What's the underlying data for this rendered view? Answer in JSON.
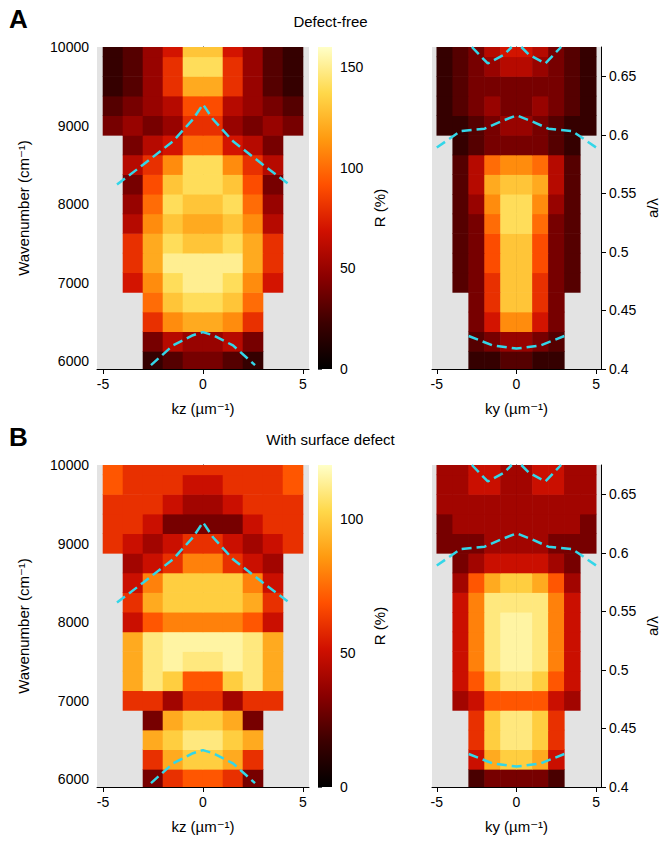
{
  "chart_data": [
    {
      "type": "heatmap",
      "label": "A",
      "title": "Defect-free",
      "xlabel": "kz (µm⁻¹)",
      "ylabel": "Wavenumber (cm⁻¹)",
      "xlim": [
        -5.3,
        5.3
      ],
      "xticks": [
        -5,
        0,
        5
      ],
      "ylim": [
        5900,
        10000
      ],
      "yticks": [
        6000,
        7000,
        8000,
        9000,
        10000
      ],
      "colorbar": {
        "label": "R (%)",
        "range": [
          0,
          160
        ],
        "ticks": [
          0,
          50,
          100,
          150
        ]
      },
      "x": [
        -4.5,
        -3.5,
        -2.5,
        -1.5,
        -0.5,
        0.5,
        1.5,
        2.5,
        3.5,
        4.5
      ],
      "y": [
        6000,
        6250,
        6500,
        6750,
        7000,
        7250,
        7500,
        7750,
        8000,
        8250,
        8500,
        8750,
        9000,
        9250,
        9500,
        9750,
        10000
      ],
      "cells": [
        [
          null,
          null,
          20,
          30,
          40,
          40,
          30,
          20,
          null,
          null
        ],
        [
          null,
          null,
          40,
          60,
          50,
          50,
          60,
          40,
          null,
          null
        ],
        [
          null,
          null,
          80,
          110,
          120,
          120,
          110,
          80,
          null,
          null
        ],
        [
          null,
          null,
          100,
          130,
          140,
          140,
          130,
          100,
          null,
          null
        ],
        [
          null,
          70,
          110,
          140,
          150,
          150,
          140,
          110,
          70,
          null
        ],
        [
          null,
          80,
          120,
          150,
          150,
          150,
          150,
          120,
          80,
          null
        ],
        [
          null,
          80,
          120,
          140,
          130,
          130,
          140,
          120,
          80,
          null
        ],
        [
          null,
          60,
          110,
          130,
          120,
          120,
          130,
          110,
          60,
          null
        ],
        [
          null,
          50,
          100,
          140,
          130,
          130,
          140,
          100,
          50,
          null
        ],
        [
          null,
          40,
          90,
          130,
          140,
          140,
          130,
          90,
          40,
          null
        ],
        [
          null,
          60,
          80,
          110,
          140,
          140,
          110,
          80,
          60,
          null
        ],
        [
          null,
          40,
          60,
          70,
          100,
          100,
          70,
          60,
          40,
          null
        ],
        [
          40,
          50,
          40,
          50,
          80,
          80,
          50,
          40,
          50,
          40
        ],
        [
          30,
          40,
          50,
          60,
          90,
          90,
          60,
          50,
          40,
          30
        ],
        [
          20,
          30,
          50,
          80,
          120,
          120,
          80,
          50,
          30,
          20
        ],
        [
          20,
          30,
          50,
          80,
          140,
          140,
          80,
          50,
          30,
          20
        ],
        [
          20,
          30,
          50,
          70,
          130,
          130,
          70,
          50,
          30,
          20
        ]
      ],
      "series": [
        {
          "type": "line",
          "color": "#33d6e8",
          "line_style": "dashed",
          "x": [
            -4.3,
            -3,
            -1.5,
            -0.5,
            0,
            0.5,
            1.5,
            3,
            4.3
          ],
          "y": [
            8250,
            8500,
            8800,
            9080,
            9270,
            9080,
            8800,
            8500,
            8250
          ]
        },
        {
          "type": "line",
          "color": "#33d6e8",
          "line_style": "dashed",
          "x": [
            -2.6,
            -1.5,
            -0.5,
            0,
            0.5,
            1.5,
            2.6
          ],
          "y": [
            5950,
            6200,
            6330,
            6370,
            6330,
            6200,
            5950
          ]
        }
      ]
    },
    {
      "type": "heatmap",
      "xlabel": "ky (µm⁻¹)",
      "y2label": "a/λ",
      "xlim": [
        -5.3,
        5.3
      ],
      "xticks": [
        -5,
        0,
        5
      ],
      "ylim": [
        5900,
        10000
      ],
      "y2lim": [
        0.4,
        0.675
      ],
      "y2ticks": [
        0.4,
        0.45,
        0.5,
        0.55,
        0.6,
        0.65
      ],
      "x": [
        -4.5,
        -3.5,
        -2.5,
        -1.5,
        -0.5,
        0.5,
        1.5,
        2.5,
        3.5,
        4.5
      ],
      "y": [
        6000,
        6250,
        6500,
        6750,
        7000,
        7250,
        7500,
        7750,
        8000,
        8250,
        8500,
        8750,
        9000,
        9250,
        9500,
        9750,
        10000
      ],
      "cells": [
        [
          null,
          null,
          20,
          20,
          30,
          30,
          20,
          20,
          null,
          null
        ],
        [
          null,
          null,
          30,
          40,
          50,
          50,
          40,
          30,
          null,
          null
        ],
        [
          null,
          null,
          40,
          70,
          110,
          110,
          70,
          40,
          null,
          null
        ],
        [
          null,
          null,
          40,
          80,
          130,
          130,
          80,
          40,
          null,
          null
        ],
        [
          null,
          30,
          40,
          80,
          130,
          130,
          80,
          40,
          30,
          null
        ],
        [
          null,
          30,
          40,
          90,
          130,
          130,
          90,
          40,
          30,
          null
        ],
        [
          null,
          30,
          40,
          90,
          130,
          130,
          90,
          40,
          30,
          null
        ],
        [
          null,
          30,
          40,
          100,
          140,
          140,
          100,
          40,
          30,
          null
        ],
        [
          null,
          30,
          50,
          110,
          140,
          140,
          110,
          50,
          30,
          null
        ],
        [
          null,
          30,
          60,
          120,
          130,
          130,
          120,
          60,
          30,
          null
        ],
        [
          null,
          30,
          60,
          100,
          110,
          110,
          100,
          60,
          30,
          null
        ],
        [
          null,
          20,
          30,
          40,
          40,
          40,
          40,
          30,
          20,
          null
        ],
        [
          20,
          20,
          30,
          40,
          50,
          50,
          40,
          30,
          20,
          20
        ],
        [
          20,
          30,
          40,
          50,
          40,
          40,
          50,
          40,
          30,
          20
        ],
        [
          20,
          30,
          40,
          40,
          40,
          40,
          40,
          40,
          30,
          20
        ],
        [
          20,
          30,
          40,
          50,
          60,
          60,
          50,
          40,
          30,
          20
        ],
        [
          20,
          30,
          40,
          60,
          70,
          70,
          60,
          40,
          30,
          20
        ]
      ],
      "series": [
        {
          "type": "line",
          "color": "#33d6e8",
          "line_style": "dashed",
          "x": [
            -3,
            -1.5,
            0,
            1.5,
            3
          ],
          "y": [
            6320,
            6200,
            6160,
            6200,
            6320
          ]
        },
        {
          "type": "line",
          "color": "#33d6e8",
          "line_style": "dashed",
          "x": [
            -5,
            -3.5,
            -2,
            -1,
            0,
            1,
            2,
            3.5,
            5
          ],
          "y": [
            8720,
            8930,
            8960,
            9050,
            9130,
            9050,
            8960,
            8930,
            8720
          ]
        },
        {
          "type": "line",
          "color": "#33d6e8",
          "line_style": "dashed",
          "x": [
            -2.8,
            -1.8,
            -0.8,
            -0.3,
            null,
            0.3,
            0.8,
            1.8,
            2.8
          ],
          "y": [
            10000,
            9790,
            9900,
            10000,
            null,
            10000,
            9900,
            9790,
            10000
          ]
        }
      ]
    },
    {
      "type": "heatmap",
      "label": "B",
      "title": "With surface defect",
      "xlabel": "kz (µm⁻¹)",
      "ylabel": "Wavenumber (cm⁻¹)",
      "xlim": [
        -5.3,
        5.3
      ],
      "xticks": [
        -5,
        0,
        5
      ],
      "ylim": [
        5900,
        10000
      ],
      "yticks": [
        6000,
        7000,
        8000,
        9000,
        10000
      ],
      "colorbar": {
        "label": "R (%)",
        "range": [
          0,
          120
        ],
        "ticks": [
          0,
          50,
          100
        ]
      },
      "x": [
        -4.5,
        -3.5,
        -2.5,
        -1.5,
        -0.5,
        0.5,
        1.5,
        2.5,
        3.5,
        4.5
      ],
      "y": [
        6000,
        6250,
        6500,
        6750,
        7000,
        7250,
        7500,
        7750,
        8000,
        8250,
        8500,
        8750,
        9000,
        9250,
        9500,
        9750,
        10000
      ],
      "cells": [
        [
          null,
          null,
          30,
          60,
          70,
          70,
          60,
          30,
          null,
          null
        ],
        [
          null,
          null,
          60,
          90,
          100,
          100,
          90,
          60,
          null,
          null
        ],
        [
          null,
          null,
          90,
          100,
          110,
          110,
          100,
          90,
          null,
          null
        ],
        [
          null,
          null,
          30,
          90,
          100,
          100,
          90,
          30,
          null,
          null
        ],
        [
          null,
          60,
          60,
          40,
          60,
          60,
          40,
          60,
          60,
          null
        ],
        [
          null,
          90,
          110,
          100,
          70,
          70,
          100,
          110,
          90,
          null
        ],
        [
          null,
          90,
          110,
          115,
          110,
          110,
          115,
          110,
          90,
          null
        ],
        [
          null,
          90,
          110,
          115,
          115,
          115,
          115,
          110,
          90,
          null
        ],
        [
          null,
          50,
          70,
          80,
          80,
          80,
          80,
          70,
          50,
          null
        ],
        [
          null,
          60,
          90,
          100,
          100,
          100,
          100,
          90,
          60,
          null
        ],
        [
          null,
          50,
          80,
          100,
          100,
          100,
          100,
          80,
          50,
          null
        ],
        [
          null,
          40,
          50,
          60,
          80,
          80,
          60,
          50,
          40,
          null
        ],
        [
          60,
          50,
          40,
          50,
          60,
          60,
          50,
          40,
          50,
          60
        ],
        [
          60,
          60,
          50,
          30,
          30,
          30,
          30,
          50,
          60,
          60
        ],
        [
          60,
          60,
          60,
          50,
          40,
          40,
          50,
          60,
          60,
          60
        ],
        [
          70,
          60,
          60,
          60,
          50,
          50,
          60,
          60,
          60,
          70
        ],
        [
          70,
          60,
          60,
          60,
          60,
          60,
          60,
          60,
          60,
          70
        ]
      ],
      "series": [
        {
          "type": "line",
          "color": "#33d6e8",
          "line_style": "dashed",
          "x": [
            -4.3,
            -3,
            -1.5,
            -0.5,
            0,
            0.5,
            1.5,
            3,
            4.3
          ],
          "y": [
            8250,
            8500,
            8800,
            9080,
            9270,
            9080,
            8800,
            8500,
            8250
          ]
        },
        {
          "type": "line",
          "color": "#33d6e8",
          "line_style": "dashed",
          "x": [
            -2.6,
            -1.5,
            -0.5,
            0,
            0.5,
            1.5,
            2.6
          ],
          "y": [
            5950,
            6200,
            6330,
            6370,
            6330,
            6200,
            5950
          ]
        }
      ]
    },
    {
      "type": "heatmap",
      "xlabel": "ky (µm⁻¹)",
      "y2label": "a/λ",
      "xlim": [
        -5.3,
        5.3
      ],
      "xticks": [
        -5,
        0,
        5
      ],
      "ylim": [
        5900,
        10000
      ],
      "y2lim": [
        0.4,
        0.675
      ],
      "y2ticks": [
        0.4,
        0.45,
        0.5,
        0.55,
        0.6,
        0.65
      ],
      "x": [
        -4.5,
        -3.5,
        -2.5,
        -1.5,
        -0.5,
        0.5,
        1.5,
        2.5,
        3.5,
        4.5
      ],
      "y": [
        6000,
        6250,
        6500,
        6750,
        7000,
        7250,
        7500,
        7750,
        8000,
        8250,
        8500,
        8750,
        9000,
        9250,
        9500,
        9750,
        10000
      ],
      "cells": [
        [
          null,
          null,
          20,
          30,
          30,
          30,
          30,
          20,
          null,
          null
        ],
        [
          null,
          null,
          50,
          90,
          100,
          100,
          90,
          50,
          null,
          null
        ],
        [
          null,
          null,
          60,
          100,
          110,
          110,
          100,
          60,
          null,
          null
        ],
        [
          null,
          null,
          60,
          100,
          110,
          110,
          100,
          60,
          null,
          null
        ],
        [
          null,
          40,
          50,
          70,
          70,
          70,
          70,
          50,
          40,
          null
        ],
        [
          null,
          50,
          70,
          100,
          110,
          110,
          100,
          70,
          50,
          null
        ],
        [
          null,
          50,
          80,
          110,
          115,
          115,
          110,
          80,
          50,
          null
        ],
        [
          null,
          50,
          80,
          110,
          115,
          115,
          110,
          80,
          50,
          null
        ],
        [
          null,
          50,
          80,
          110,
          115,
          115,
          110,
          80,
          50,
          null
        ],
        [
          null,
          50,
          80,
          110,
          110,
          110,
          110,
          80,
          50,
          null
        ],
        [
          null,
          40,
          70,
          90,
          100,
          100,
          90,
          70,
          40,
          null
        ],
        [
          null,
          30,
          40,
          50,
          50,
          50,
          50,
          40,
          30,
          null
        ],
        [
          30,
          30,
          30,
          40,
          40,
          40,
          40,
          30,
          30,
          30
        ],
        [
          30,
          40,
          40,
          40,
          40,
          40,
          40,
          40,
          40,
          30
        ],
        [
          40,
          40,
          40,
          40,
          40,
          40,
          40,
          40,
          40,
          40
        ],
        [
          40,
          40,
          50,
          50,
          40,
          40,
          50,
          50,
          40,
          40
        ],
        [
          40,
          40,
          50,
          50,
          40,
          40,
          50,
          50,
          40,
          40
        ]
      ],
      "series": [
        {
          "type": "line",
          "color": "#33d6e8",
          "line_style": "dashed",
          "x": [
            -3,
            -1.5,
            0,
            1.5,
            3
          ],
          "y": [
            6320,
            6200,
            6160,
            6200,
            6320
          ]
        },
        {
          "type": "line",
          "color": "#33d6e8",
          "line_style": "dashed",
          "x": [
            -5,
            -3.5,
            -2,
            -1,
            0,
            1,
            2,
            3.5,
            5
          ],
          "y": [
            8720,
            8930,
            8960,
            9050,
            9130,
            9050,
            8960,
            8930,
            8720
          ]
        },
        {
          "type": "line",
          "color": "#33d6e8",
          "line_style": "dashed",
          "x": [
            -2.8,
            -1.8,
            -0.8,
            -0.3,
            null,
            0.3,
            0.8,
            1.8,
            2.8
          ],
          "y": [
            10000,
            9790,
            9900,
            10000,
            null,
            10000,
            9900,
            9790,
            10000
          ]
        }
      ]
    }
  ]
}
